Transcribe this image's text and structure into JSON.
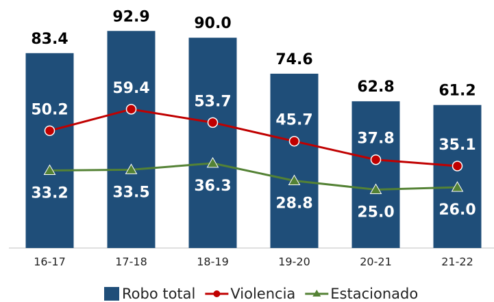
{
  "chart_data": {
    "type": "bar",
    "categories": [
      "16-17",
      "17-18",
      "18-19",
      "19-20",
      "20-21",
      "21-22"
    ],
    "series": [
      {
        "name": "Robo total",
        "type": "bar",
        "color": "#1f4e79",
        "values": [
          83.4,
          92.9,
          90.0,
          74.6,
          62.8,
          61.2
        ],
        "value_labels": [
          "83.4",
          "92.9",
          "90.0",
          "74.6",
          "62.8",
          "61.2"
        ]
      },
      {
        "name": "Violencia",
        "type": "line",
        "marker": "circle",
        "color": "#c00000",
        "values": [
          50.2,
          59.4,
          53.7,
          45.7,
          37.8,
          35.1
        ],
        "value_labels": [
          "50.2",
          "59.4",
          "53.7",
          "45.7",
          "37.8",
          "35.1"
        ]
      },
      {
        "name": "Estacionado",
        "type": "line",
        "marker": "triangle",
        "color": "#548235",
        "values": [
          33.2,
          33.5,
          36.3,
          28.8,
          25.0,
          26.0
        ],
        "value_labels": [
          "33.2",
          "33.5",
          "36.3",
          "28.8",
          "25.0",
          "26.0"
        ]
      }
    ],
    "ylim": [
      0,
      100
    ]
  }
}
